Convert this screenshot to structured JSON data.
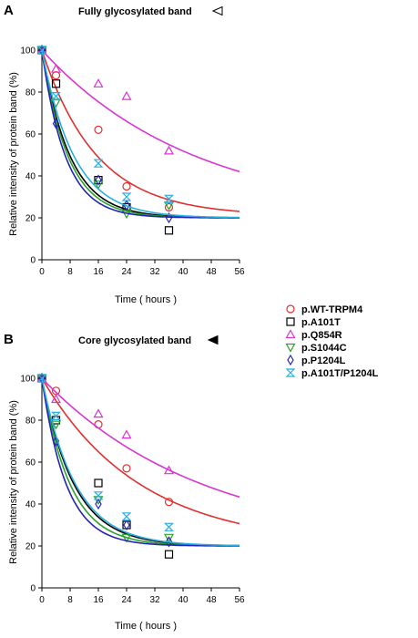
{
  "legend": {
    "entries": [
      {
        "name": "p.WT-TRPM4",
        "color": "#e03030",
        "marker": "circle"
      },
      {
        "name": "p.A101T",
        "color": "#000000",
        "marker": "square"
      },
      {
        "name": "p.Q854R",
        "color": "#d836d0",
        "marker": "triangle-up"
      },
      {
        "name": "p.S1044C",
        "color": "#2ca02c",
        "marker": "triangle-down"
      },
      {
        "name": "p.P1204L",
        "color": "#2323b5",
        "marker": "diamond"
      },
      {
        "name": "p.A101T/P1204L",
        "color": "#29aee0",
        "marker": "hourglass"
      }
    ]
  },
  "chart_data": [
    {
      "type": "scatter",
      "panel_letter": "A",
      "title": "Fully glycosylated band",
      "title_icon": "open-triangle-left-icon",
      "xlabel": "Time ( hours )",
      "ylabel": "Relative intensity of protein band (%)",
      "xlim": [
        0,
        56
      ],
      "ylim": [
        0,
        100
      ],
      "xticks": [
        "0",
        "8",
        "16",
        "24",
        "32",
        "40",
        "48",
        "56"
      ],
      "yticks": [
        "0",
        "20",
        "40",
        "60",
        "80",
        "100"
      ],
      "series": [
        {
          "name": "p.WT-TRPM4",
          "points": [
            {
              "x": 0,
              "y": 100
            },
            {
              "x": 4,
              "y": 88
            },
            {
              "x": 16,
              "y": 62
            },
            {
              "x": 24,
              "y": 35
            },
            {
              "x": 36,
              "y": 25
            }
          ],
          "fit": {
            "plateau": 21,
            "k": 0.065
          }
        },
        {
          "name": "p.A101T",
          "points": [
            {
              "x": 0,
              "y": 100
            },
            {
              "x": 4,
              "y": 84
            },
            {
              "x": 16,
              "y": 38
            },
            {
              "x": 24,
              "y": 25
            },
            {
              "x": 36,
              "y": 14
            }
          ],
          "fit": {
            "plateau": 20,
            "k": 0.125
          }
        },
        {
          "name": "p.Q854R",
          "points": [
            {
              "x": 0,
              "y": 100
            },
            {
              "x": 4,
              "y": 91
            },
            {
              "x": 16,
              "y": 84
            },
            {
              "x": 24,
              "y": 78
            },
            {
              "x": 36,
              "y": 52
            }
          ],
          "fit": {
            "plateau": 20,
            "k": 0.023
          }
        },
        {
          "name": "p.S1044C",
          "points": [
            {
              "x": 0,
              "y": 100
            },
            {
              "x": 4,
              "y": 75
            },
            {
              "x": 16,
              "y": 36
            },
            {
              "x": 24,
              "y": 22
            },
            {
              "x": 36,
              "y": 26
            }
          ],
          "fit": {
            "plateau": 20,
            "k": 0.135
          }
        },
        {
          "name": "p.P1204L",
          "points": [
            {
              "x": 0,
              "y": 100
            },
            {
              "x": 4,
              "y": 65
            },
            {
              "x": 16,
              "y": 38
            },
            {
              "x": 24,
              "y": 26
            },
            {
              "x": 36,
              "y": 20
            }
          ],
          "fit": {
            "plateau": 20,
            "k": 0.15
          }
        },
        {
          "name": "p.A101T/P1204L",
          "points": [
            {
              "x": 0,
              "y": 100
            },
            {
              "x": 4,
              "y": 78
            },
            {
              "x": 16,
              "y": 46
            },
            {
              "x": 24,
              "y": 30
            },
            {
              "x": 36,
              "y": 29
            }
          ],
          "fit": {
            "plateau": 20,
            "k": 0.11
          }
        }
      ]
    },
    {
      "type": "scatter",
      "panel_letter": "B",
      "title": "Core glycosylated band",
      "title_icon": "filled-triangle-left-icon",
      "xlabel": "Time ( hours )",
      "ylabel": "Relative intensity of protein band (%)",
      "xlim": [
        0,
        56
      ],
      "ylim": [
        0,
        100
      ],
      "xticks": [
        "0",
        "8",
        "16",
        "24",
        "32",
        "40",
        "48",
        "56"
      ],
      "yticks": [
        "0",
        "20",
        "40",
        "60",
        "80",
        "100"
      ],
      "series": [
        {
          "name": "p.WT-TRPM4",
          "points": [
            {
              "x": 0,
              "y": 100
            },
            {
              "x": 4,
              "y": 94
            },
            {
              "x": 16,
              "y": 78
            },
            {
              "x": 24,
              "y": 57
            },
            {
              "x": 36,
              "y": 41
            }
          ],
          "fit": {
            "plateau": 20,
            "k": 0.036
          }
        },
        {
          "name": "p.A101T",
          "points": [
            {
              "x": 0,
              "y": 100
            },
            {
              "x": 4,
              "y": 80
            },
            {
              "x": 16,
              "y": 50
            },
            {
              "x": 24,
              "y": 30
            },
            {
              "x": 36,
              "y": 16
            }
          ],
          "fit": {
            "plateau": 20,
            "k": 0.11
          }
        },
        {
          "name": "p.Q854R",
          "points": [
            {
              "x": 0,
              "y": 100
            },
            {
              "x": 4,
              "y": 90
            },
            {
              "x": 16,
              "y": 83
            },
            {
              "x": 24,
              "y": 73
            },
            {
              "x": 36,
              "y": 56
            }
          ],
          "fit": {
            "plateau": 20,
            "k": 0.022
          }
        },
        {
          "name": "p.S1044C",
          "points": [
            {
              "x": 0,
              "y": 100
            },
            {
              "x": 4,
              "y": 78
            },
            {
              "x": 16,
              "y": 42
            },
            {
              "x": 24,
              "y": 24
            },
            {
              "x": 36,
              "y": 24
            }
          ],
          "fit": {
            "plateau": 20,
            "k": 0.125
          }
        },
        {
          "name": "p.P1204L",
          "points": [
            {
              "x": 0,
              "y": 100
            },
            {
              "x": 4,
              "y": 70
            },
            {
              "x": 16,
              "y": 40
            },
            {
              "x": 24,
              "y": 30
            },
            {
              "x": 36,
              "y": 22
            }
          ],
          "fit": {
            "plateau": 20,
            "k": 0.145
          }
        },
        {
          "name": "p.A101T/P1204L",
          "points": [
            {
              "x": 0,
              "y": 100
            },
            {
              "x": 4,
              "y": 82
            },
            {
              "x": 16,
              "y": 44
            },
            {
              "x": 24,
              "y": 34
            },
            {
              "x": 36,
              "y": 29
            }
          ],
          "fit": {
            "plateau": 20,
            "k": 0.105
          }
        }
      ]
    }
  ]
}
